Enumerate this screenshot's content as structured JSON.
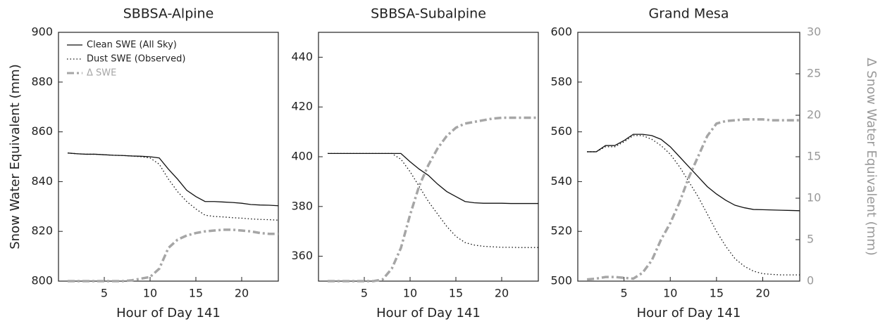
{
  "chart_data": [
    {
      "type": "line",
      "title": "SBBSA-Alpine",
      "x_label": "Hour of Day 141",
      "y_label": "Snow Water Equivalent (mm)",
      "x": [
        1,
        2,
        3,
        4,
        5,
        6,
        7,
        8,
        9,
        10,
        11,
        12,
        13,
        14,
        15,
        16,
        17,
        18,
        19,
        20,
        21,
        22,
        23,
        24
      ],
      "xlim": [
        0,
        24
      ],
      "xticks": [
        5,
        10,
        15,
        20
      ],
      "ylim": [
        800,
        900
      ],
      "yticks": [
        800,
        820,
        840,
        860,
        880,
        900
      ],
      "y2lim": [
        0,
        30
      ],
      "legend": "upper left",
      "series": [
        {
          "name": "Clean SWE (All Sky)",
          "color": "#111111",
          "dash": "solid",
          "values": [
            851.5,
            851.2,
            851,
            851,
            850.8,
            850.6,
            850.5,
            850.3,
            850.2,
            850,
            849.5,
            845,
            841,
            836.5,
            834,
            832,
            832,
            831.8,
            831.6,
            831.3,
            830.8,
            830.6,
            830.5,
            830.3
          ]
        },
        {
          "name": "Dust SWE (Observed)",
          "color": "#111111",
          "dash": "dotted",
          "values": [
            851.5,
            851.2,
            851,
            851,
            850.8,
            850.6,
            850.5,
            850.3,
            850,
            849.5,
            847,
            841,
            836,
            832,
            829,
            826.5,
            826,
            825.8,
            825.5,
            825.3,
            825,
            824.8,
            824.7,
            824.5
          ]
        },
        {
          "name": "Δ SWE",
          "color": "#a6a6a6",
          "dash": "dashdot",
          "axis": "y2",
          "values": [
            0,
            0,
            0,
            0,
            0,
            0,
            0,
            0.1,
            0.3,
            0.5,
            1.5,
            4,
            5,
            5.5,
            5.8,
            6,
            6.1,
            6.2,
            6.2,
            6.1,
            6,
            5.8,
            5.7,
            5.7
          ]
        }
      ]
    },
    {
      "type": "line",
      "title": "SBBSA-Subalpine",
      "x_label": "Hour of Day 141",
      "x": [
        1,
        2,
        3,
        4,
        5,
        6,
        7,
        8,
        9,
        10,
        11,
        12,
        13,
        14,
        15,
        16,
        17,
        18,
        19,
        20,
        21,
        22,
        23,
        24
      ],
      "xlim": [
        0,
        24
      ],
      "xticks": [
        5,
        10,
        15,
        20
      ],
      "ylim": [
        350,
        450
      ],
      "yticks": [
        360,
        380,
        400,
        420,
        440
      ],
      "y2lim": [
        0,
        30
      ],
      "series": [
        {
          "color": "#111111",
          "dash": "solid",
          "values": [
            401.3,
            401.3,
            401.3,
            401.3,
            401.3,
            401.3,
            401.3,
            401.3,
            401.3,
            398,
            395,
            392.5,
            389,
            386,
            384,
            382,
            381.5,
            381.3,
            381.3,
            381.3,
            381.2,
            381.2,
            381.2,
            381.2
          ]
        },
        {
          "color": "#111111",
          "dash": "dotted",
          "values": [
            401.3,
            401.3,
            401.3,
            401.3,
            401.3,
            401.3,
            401.3,
            401.3,
            399,
            394,
            388,
            382,
            377,
            372,
            368,
            365.5,
            364.5,
            364,
            363.8,
            363.6,
            363.6,
            363.5,
            363.5,
            363.5
          ]
        },
        {
          "color": "#a6a6a6",
          "dash": "dashdot",
          "axis": "y2",
          "values": [
            0,
            0,
            0,
            0,
            0,
            0,
            0.2,
            1.5,
            4,
            8,
            11.5,
            14,
            16,
            17.5,
            18.5,
            19,
            19.2,
            19.4,
            19.6,
            19.7,
            19.7,
            19.7,
            19.7,
            19.7
          ]
        }
      ]
    },
    {
      "type": "line",
      "title": "Grand Mesa",
      "x_label": "Hour of Day 141",
      "y2_label": "Δ Snow Water Equivalent (mm)",
      "x": [
        1,
        2,
        3,
        4,
        5,
        6,
        7,
        8,
        9,
        10,
        11,
        12,
        13,
        14,
        15,
        16,
        17,
        18,
        19,
        20,
        21,
        22,
        23,
        24
      ],
      "xlim": [
        0,
        24
      ],
      "xticks": [
        5,
        10,
        15,
        20
      ],
      "ylim": [
        500,
        600
      ],
      "yticks": [
        500,
        520,
        540,
        560,
        580,
        600
      ],
      "y2lim": [
        0,
        30
      ],
      "y2ticks": [
        0,
        5,
        10,
        15,
        20,
        25,
        30
      ],
      "series": [
        {
          "color": "#111111",
          "dash": "solid",
          "values": [
            552,
            552,
            554.5,
            554.5,
            556.5,
            559,
            559,
            558.5,
            557,
            554,
            550,
            546,
            542,
            538,
            535,
            532.5,
            530.5,
            529.5,
            528.8,
            528.7,
            528.6,
            528.5,
            528.4,
            528.3
          ]
        },
        {
          "color": "#111111",
          "dash": "dotted",
          "values": [
            552,
            552,
            554,
            554,
            556,
            558.5,
            558.5,
            557,
            554.5,
            551,
            546,
            540,
            534,
            527,
            520,
            514,
            509,
            506,
            504,
            503,
            502.7,
            502.5,
            502.5,
            502.5
          ]
        },
        {
          "color": "#a6a6a6",
          "dash": "dashdot",
          "axis": "y2",
          "values": [
            0.2,
            0.3,
            0.5,
            0.5,
            0.4,
            0.3,
            1,
            2.5,
            5,
            7,
            9.5,
            12.5,
            15,
            17.5,
            19,
            19.3,
            19.4,
            19.5,
            19.5,
            19.5,
            19.4,
            19.4,
            19.4,
            19.4
          ]
        }
      ]
    }
  ]
}
